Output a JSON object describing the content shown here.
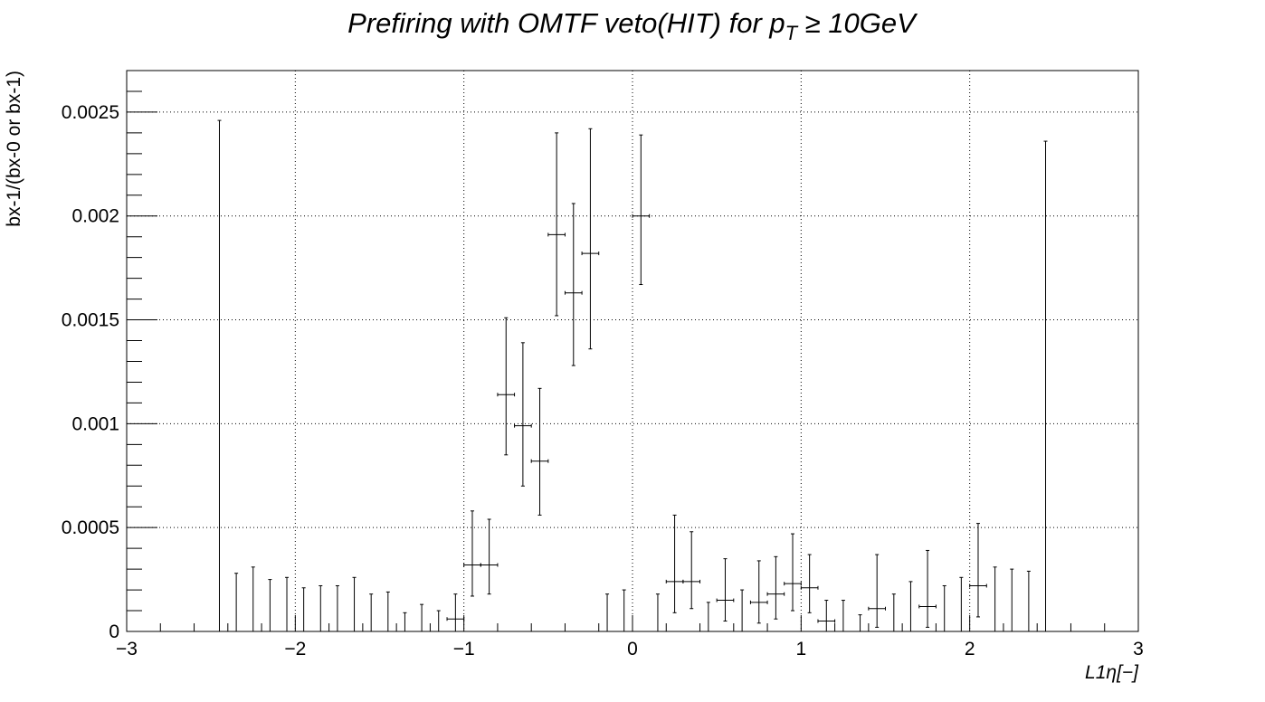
{
  "chart_data": {
    "type": "scatter",
    "title": "Prefiring with OMTF veto(HIT) for p_T ≥  10GeV",
    "title_parts": {
      "lead": "Prefiring with OMTF veto(HIT) for p",
      "subscript": "T",
      "tail": " ≥  10GeV"
    },
    "xlabel": "L1η[−]",
    "ylabel": "bx-1/(bx-0 or bx-1)",
    "xlim": [
      -3,
      3
    ],
    "ylim": [
      0,
      0.0027
    ],
    "grid": true,
    "grid_style": "dotted",
    "x_ticks": [
      {
        "value": -3,
        "label": "−3"
      },
      {
        "value": -2,
        "label": "−2"
      },
      {
        "value": -1,
        "label": "−1"
      },
      {
        "value": 0,
        "label": "0"
      },
      {
        "value": 1,
        "label": "1"
      },
      {
        "value": 2,
        "label": "2"
      },
      {
        "value": 3,
        "label": "3"
      }
    ],
    "y_ticks": [
      {
        "value": 0,
        "label": "0"
      },
      {
        "value": 0.0005,
        "label": "0.0005"
      },
      {
        "value": 0.001,
        "label": "0.001"
      },
      {
        "value": 0.0015,
        "label": "0.0015"
      },
      {
        "value": 0.002,
        "label": "0.002"
      },
      {
        "value": 0.0025,
        "label": "0.0025"
      }
    ],
    "bin_width": 0.1,
    "series": [
      {
        "color": "#000000",
        "points": [
          {
            "x": -2.45,
            "y": 0,
            "err_low": 0,
            "err_high": 0.00246
          },
          {
            "x": -2.35,
            "y": 0,
            "err_low": 0,
            "err_high": 0.00028
          },
          {
            "x": -2.25,
            "y": 0,
            "err_low": 0,
            "err_high": 0.00031
          },
          {
            "x": -2.15,
            "y": 0,
            "err_low": 0,
            "err_high": 0.00025
          },
          {
            "x": -2.05,
            "y": 0,
            "err_low": 0,
            "err_high": 0.00026
          },
          {
            "x": -1.95,
            "y": 0,
            "err_low": 0,
            "err_high": 0.00021
          },
          {
            "x": -1.85,
            "y": 0,
            "err_low": 0,
            "err_high": 0.00022
          },
          {
            "x": -1.75,
            "y": 0,
            "err_low": 0,
            "err_high": 0.00022
          },
          {
            "x": -1.65,
            "y": 0,
            "err_low": 0,
            "err_high": 0.00026
          },
          {
            "x": -1.55,
            "y": 0,
            "err_low": 0,
            "err_high": 0.00018
          },
          {
            "x": -1.45,
            "y": 0,
            "err_low": 0,
            "err_high": 0.00019
          },
          {
            "x": -1.35,
            "y": 0,
            "err_low": 0,
            "err_high": 9e-05
          },
          {
            "x": -1.25,
            "y": 0,
            "err_low": 0,
            "err_high": 0.00013
          },
          {
            "x": -1.15,
            "y": 0,
            "err_low": 0,
            "err_high": 0.0001
          },
          {
            "x": -1.05,
            "y": 6e-05,
            "err_low": 6e-05,
            "err_high": 0.00012
          },
          {
            "x": -0.95,
            "y": 0.00032,
            "err_low": 0.00015,
            "err_high": 0.00026
          },
          {
            "x": -0.85,
            "y": 0.00032,
            "err_low": 0.00014,
            "err_high": 0.00022
          },
          {
            "x": -0.75,
            "y": 0.00114,
            "err_low": 0.00029,
            "err_high": 0.00037
          },
          {
            "x": -0.65,
            "y": 0.00099,
            "err_low": 0.00029,
            "err_high": 0.0004
          },
          {
            "x": -0.55,
            "y": 0.00082,
            "err_low": 0.00026,
            "err_high": 0.00035
          },
          {
            "x": -0.45,
            "y": 0.00191,
            "err_low": 0.00039,
            "err_high": 0.00049
          },
          {
            "x": -0.35,
            "y": 0.00163,
            "err_low": 0.00035,
            "err_high": 0.00043
          },
          {
            "x": -0.25,
            "y": 0.00182,
            "err_low": 0.00046,
            "err_high": 0.0006
          },
          {
            "x": -0.15,
            "y": 0,
            "err_low": 0,
            "err_high": 0.00018
          },
          {
            "x": -0.05,
            "y": 0,
            "err_low": 0,
            "err_high": 0.0002
          },
          {
            "x": 0.05,
            "y": 0.002,
            "err_low": 0.00033,
            "err_high": 0.00039
          },
          {
            "x": 0.15,
            "y": 0,
            "err_low": 0,
            "err_high": 0.00018
          },
          {
            "x": 0.25,
            "y": 0.00024,
            "err_low": 0.00015,
            "err_high": 0.00032
          },
          {
            "x": 0.35,
            "y": 0.00024,
            "err_low": 0.00013,
            "err_high": 0.00024
          },
          {
            "x": 0.45,
            "y": 0,
            "err_low": 0,
            "err_high": 0.00014
          },
          {
            "x": 0.55,
            "y": 0.00015,
            "err_low": 0.0001,
            "err_high": 0.0002
          },
          {
            "x": 0.65,
            "y": 0,
            "err_low": 0,
            "err_high": 0.0002
          },
          {
            "x": 0.75,
            "y": 0.00014,
            "err_low": 0.0001,
            "err_high": 0.0002
          },
          {
            "x": 0.85,
            "y": 0.00018,
            "err_low": 0.00012,
            "err_high": 0.00018
          },
          {
            "x": 0.95,
            "y": 0.00023,
            "err_low": 0.00013,
            "err_high": 0.00024
          },
          {
            "x": 1.05,
            "y": 0.00021,
            "err_low": 0.00012,
            "err_high": 0.00016
          },
          {
            "x": 1.15,
            "y": 5e-05,
            "err_low": 5e-05,
            "err_high": 0.0001
          },
          {
            "x": 1.25,
            "y": 0,
            "err_low": 0,
            "err_high": 0.00015
          },
          {
            "x": 1.35,
            "y": 0,
            "err_low": 0,
            "err_high": 8e-05
          },
          {
            "x": 1.45,
            "y": 0.00011,
            "err_low": 9e-05,
            "err_high": 0.00026
          },
          {
            "x": 1.55,
            "y": 0,
            "err_low": 0,
            "err_high": 0.00018
          },
          {
            "x": 1.65,
            "y": 0,
            "err_low": 0,
            "err_high": 0.00024
          },
          {
            "x": 1.75,
            "y": 0.00012,
            "err_low": 0.0001,
            "err_high": 0.00027
          },
          {
            "x": 1.85,
            "y": 0,
            "err_low": 0,
            "err_high": 0.00022
          },
          {
            "x": 1.95,
            "y": 0,
            "err_low": 0,
            "err_high": 0.00026
          },
          {
            "x": 2.05,
            "y": 0.00022,
            "err_low": 0.00015,
            "err_high": 0.0003
          },
          {
            "x": 2.15,
            "y": 0,
            "err_low": 0,
            "err_high": 0.00031
          },
          {
            "x": 2.25,
            "y": 0,
            "err_low": 0,
            "err_high": 0.0003
          },
          {
            "x": 2.35,
            "y": 0,
            "err_low": 0,
            "err_high": 0.00029
          },
          {
            "x": 2.45,
            "y": 0,
            "err_low": 0,
            "err_high": 0.00236
          }
        ]
      }
    ]
  }
}
